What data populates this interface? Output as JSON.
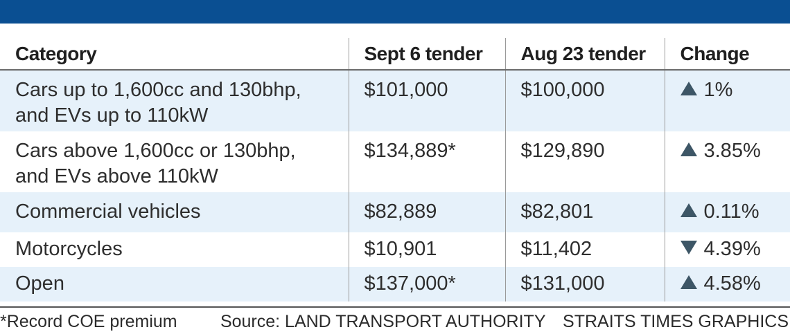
{
  "chart_data": {
    "type": "table",
    "columns": [
      "Category",
      "Sept 6 tender",
      "Aug 23 tender",
      "Change"
    ],
    "rows": [
      {
        "category_lines": [
          "Cars up to 1,600cc and 130bhp,",
          "and EVs up to 110kW"
        ],
        "sept6": "$101,000",
        "aug23": "$100,000",
        "direction": "up",
        "change": "1%"
      },
      {
        "category_lines": [
          "Cars above 1,600cc or 130bhp,",
          "and EVs above 110kW"
        ],
        "sept6": "$134,889*",
        "aug23": "$129,890",
        "direction": "up",
        "change": "3.85%"
      },
      {
        "category_lines": [
          "Commercial vehicles"
        ],
        "sept6": "$82,889",
        "aug23": "$82,801",
        "direction": "up",
        "change": "0.11%"
      },
      {
        "category_lines": [
          "Motorcycles"
        ],
        "sept6": "$10,901",
        "aug23": "$11,402",
        "direction": "down",
        "change": "4.39%"
      },
      {
        "category_lines": [
          "Open"
        ],
        "sept6": "$137,000*",
        "aug23": "$131,000",
        "direction": "up",
        "change": "4.58%"
      }
    ],
    "footnote": "*Record COE premium",
    "source": "Source: LAND TRANSPORT AUTHORITY",
    "credit": "STRAITS TIMES GRAPHICS"
  },
  "colors": {
    "header_bar": "#0a4f92",
    "row_stripe": "#e6f1fa",
    "triangle": "#3d5666"
  },
  "icons": {
    "up": "triangle-up-icon",
    "down": "triangle-down-icon"
  }
}
